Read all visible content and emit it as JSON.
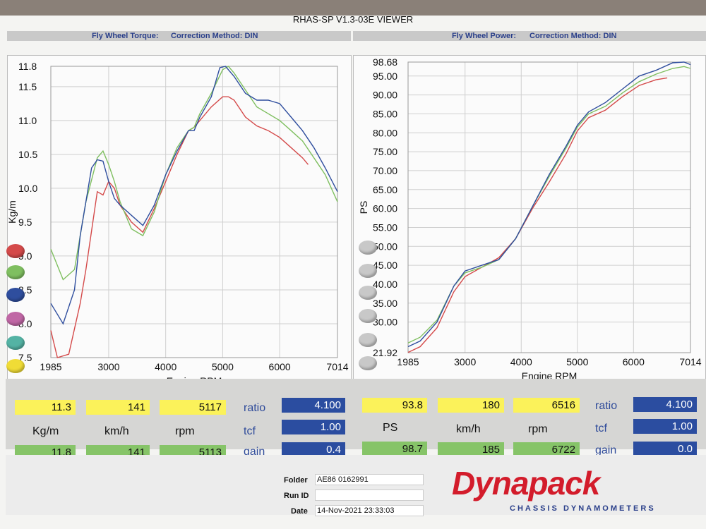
{
  "app_title": "RHAS-SP V1.3-03E VIEWER",
  "left_header": {
    "label": "Fly Wheel Torque:",
    "method": "Correction Method: DIN"
  },
  "right_header": {
    "label": "Fly Wheel Power:",
    "method": "Correction Method: DIN"
  },
  "swatch_colors": [
    "#d44a4a",
    "#7fbf60",
    "#2f4e9e",
    "#c067a5",
    "#54b3a4",
    "#f0dc36"
  ],
  "chart_data": [
    {
      "type": "line",
      "xlabel": "Engine RPM",
      "ylabel": "Kg/m",
      "xlim": [
        1985,
        7014
      ],
      "ylim": [
        7.5,
        11.8
      ],
      "xticks": [
        "1985",
        "3000",
        "4000",
        "5000",
        "6000",
        "7014"
      ],
      "yticks": [
        "7.5",
        "8.0",
        "8.5",
        "9.0",
        "9.5",
        "10.0",
        "10.5",
        "11.0",
        "11.5",
        "11.8"
      ],
      "grid": true,
      "series": [
        {
          "color": "#d44a4a",
          "x": [
            1985,
            2100,
            2300,
            2500,
            2600,
            2800,
            2900,
            3000,
            3100,
            3200,
            3400,
            3600,
            3800,
            4000,
            4200,
            4400,
            4500,
            4600,
            4800,
            5000,
            5100,
            5200,
            5400,
            5600,
            5800,
            6000,
            6200,
            6400,
            6500
          ],
          "y": [
            7.9,
            7.5,
            7.55,
            8.3,
            8.8,
            9.95,
            9.9,
            10.1,
            10.0,
            9.75,
            9.5,
            9.35,
            9.7,
            10.1,
            10.5,
            10.85,
            10.9,
            11.0,
            11.2,
            11.35,
            11.35,
            11.3,
            11.05,
            10.92,
            10.85,
            10.75,
            10.6,
            10.45,
            10.35
          ]
        },
        {
          "color": "#7fbf60",
          "x": [
            1985,
            2200,
            2400,
            2600,
            2800,
            2900,
            3000,
            3100,
            3200,
            3400,
            3600,
            3800,
            4000,
            4200,
            4400,
            4500,
            4600,
            4800,
            5000,
            5100,
            5200,
            5400,
            5600,
            5800,
            6000,
            6200,
            6400,
            6600,
            6800,
            7014
          ],
          "y": [
            9.1,
            8.65,
            8.8,
            9.8,
            10.45,
            10.55,
            10.35,
            10.1,
            9.8,
            9.4,
            9.3,
            9.65,
            10.2,
            10.6,
            10.85,
            10.9,
            11.1,
            11.4,
            11.75,
            11.8,
            11.7,
            11.45,
            11.2,
            11.1,
            11.0,
            10.85,
            10.7,
            10.45,
            10.2,
            9.8
          ]
        },
        {
          "color": "#2f4e9e",
          "x": [
            1985,
            2200,
            2400,
            2500,
            2700,
            2800,
            2900,
            3000,
            3100,
            3200,
            3400,
            3600,
            3800,
            4000,
            4200,
            4400,
            4500,
            4600,
            4800,
            4950,
            5050,
            5200,
            5400,
            5600,
            5800,
            6000,
            6200,
            6400,
            6600,
            6800,
            7014
          ],
          "y": [
            8.3,
            8.0,
            8.5,
            9.3,
            10.3,
            10.42,
            10.4,
            10.1,
            9.85,
            9.75,
            9.6,
            9.45,
            9.75,
            10.2,
            10.55,
            10.85,
            10.85,
            11.05,
            11.35,
            11.78,
            11.8,
            11.65,
            11.4,
            11.3,
            11.3,
            11.25,
            11.05,
            10.85,
            10.6,
            10.3,
            9.95
          ]
        }
      ]
    },
    {
      "type": "line",
      "xlabel": "Engine RPM",
      "ylabel": "PS",
      "xlim": [
        1985,
        7014
      ],
      "ylim": [
        21.92,
        98.68
      ],
      "xticks": [
        "1985",
        "3000",
        "4000",
        "5000",
        "6000",
        "7014"
      ],
      "yticks": [
        "21.92",
        "30.00",
        "35.00",
        "40.00",
        "45.00",
        "50.00",
        "55.00",
        "60.00",
        "65.00",
        "70.00",
        "75.00",
        "80.00",
        "85.00",
        "90.00",
        "95.00",
        "98.68"
      ],
      "grid": true,
      "series": [
        {
          "color": "#d44a4a",
          "x": [
            1985,
            2200,
            2500,
            2800,
            3000,
            3300,
            3600,
            3900,
            4200,
            4500,
            4800,
            5000,
            5200,
            5500,
            5800,
            6100,
            6400,
            6600
          ],
          "y": [
            22.0,
            23.5,
            28.5,
            38.0,
            42.0,
            44.5,
            47.0,
            52.0,
            60.0,
            67.0,
            74.5,
            80.5,
            84.0,
            86.0,
            89.5,
            92.5,
            94.0,
            94.5
          ]
        },
        {
          "color": "#7fbf60",
          "x": [
            1985,
            2200,
            2500,
            2800,
            3000,
            3300,
            3600,
            3900,
            4200,
            4500,
            4800,
            5000,
            5200,
            5500,
            5800,
            6100,
            6400,
            6700,
            6900,
            7014
          ],
          "y": [
            24.5,
            26.0,
            30.5,
            39.5,
            43.0,
            44.5,
            46.5,
            52.0,
            60.5,
            68.5,
            76.0,
            81.5,
            85.0,
            87.0,
            90.5,
            93.5,
            95.5,
            97.0,
            97.5,
            97.0
          ]
        },
        {
          "color": "#2f4e9e",
          "x": [
            1985,
            2200,
            2500,
            2800,
            3000,
            3300,
            3600,
            3900,
            4200,
            4500,
            4800,
            5000,
            5200,
            5500,
            5800,
            6100,
            6400,
            6700,
            6900,
            7014
          ],
          "y": [
            23.5,
            25.0,
            30.0,
            39.5,
            43.5,
            45.0,
            46.5,
            52.0,
            60.5,
            69.0,
            76.5,
            82.0,
            85.5,
            88.0,
            91.5,
            95.0,
            96.5,
            98.5,
            98.68,
            98.0
          ]
        }
      ]
    }
  ],
  "results": {
    "left": {
      "row1": [
        "11.3",
        "141",
        "5117"
      ],
      "units": [
        "Kg/m",
        "km/h",
        "rpm"
      ],
      "row2": [
        "11.8",
        "141",
        "5113"
      ],
      "ratio_label": "ratio",
      "ratio": "4.100",
      "tcf_label": "tcf",
      "tcf": "1.00",
      "gain_label": "gain",
      "gain": "0.4"
    },
    "right": {
      "row1": [
        "93.8",
        "180",
        "6516"
      ],
      "units": [
        "PS",
        "km/h",
        "rpm"
      ],
      "row2": [
        "98.7",
        "185",
        "6722"
      ],
      "ratio_label": "ratio",
      "ratio": "4.100",
      "tcf_label": "tcf",
      "tcf": "1.00",
      "gain_label": "gain",
      "gain": "0.0"
    }
  },
  "footer": {
    "folder_label": "Folder",
    "folder": "AE86 0162991",
    "run_label": "Run ID",
    "run": "",
    "date_label": "Date",
    "date": "14-Nov-2021  23:33:03"
  },
  "logo": {
    "name": "Dynapack",
    "sub": "CHASSIS DYNAMOMETERS"
  }
}
